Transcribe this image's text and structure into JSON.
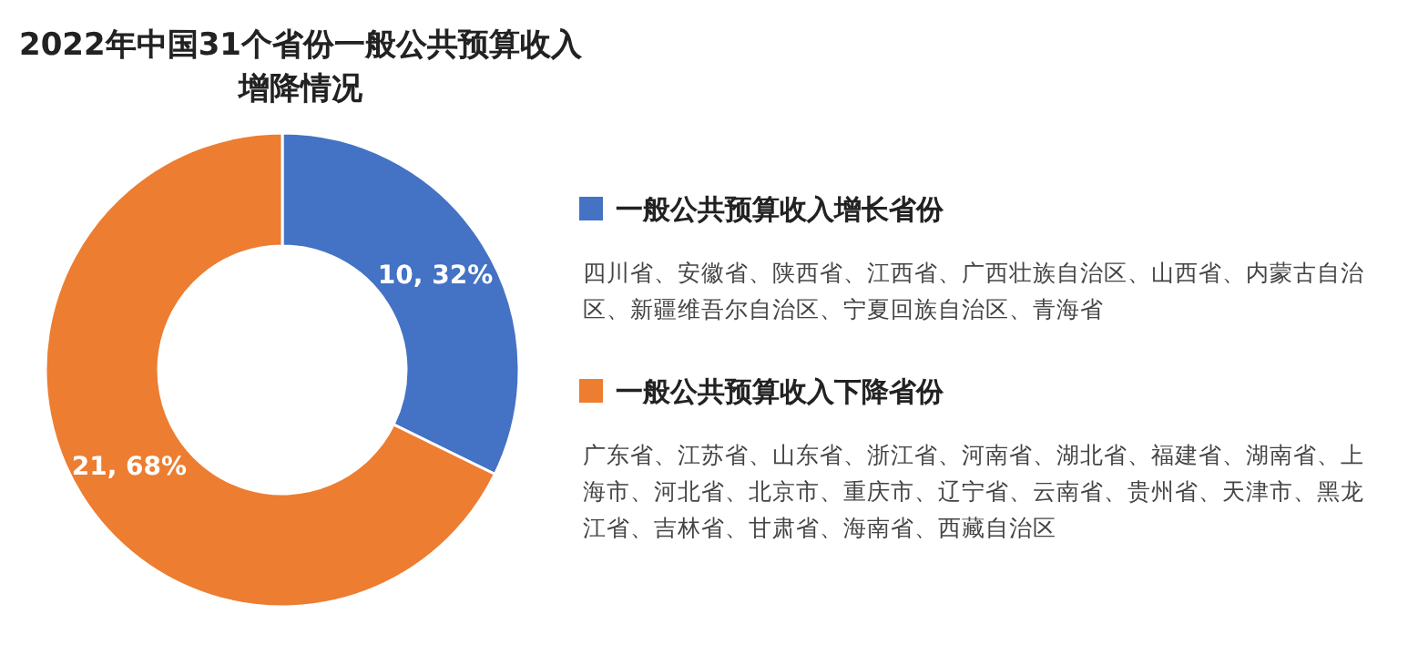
{
  "chart_data": {
    "type": "donut",
    "title": "2022年中国31个省份一般公共预算收入增降情况",
    "categories": [
      "一般公共预算收入增长省份",
      "一般公共预算收入下降省份"
    ],
    "values": [
      10,
      21
    ],
    "colors": [
      "#4472c4",
      "#ed7d31"
    ],
    "value_labels": [
      "10, 32%",
      "21, 68%"
    ],
    "legend": "right",
    "annotations": [
      "四川省、安徽省、陕西省、江西省、广西壮族自治区、山西省、内蒙古自治区、新疆维吾尔自治区、宁夏回族自治区、青海省",
      "广东省、江苏省、山东省、浙江省、河南省、湖北省、福建省、湖南省、上海市、河北省、北京市、重庆市、辽宁省、云南省、贵州省、天津市、黑龙江省、吉林省、甘肃省、海南省、西藏自治区"
    ]
  }
}
